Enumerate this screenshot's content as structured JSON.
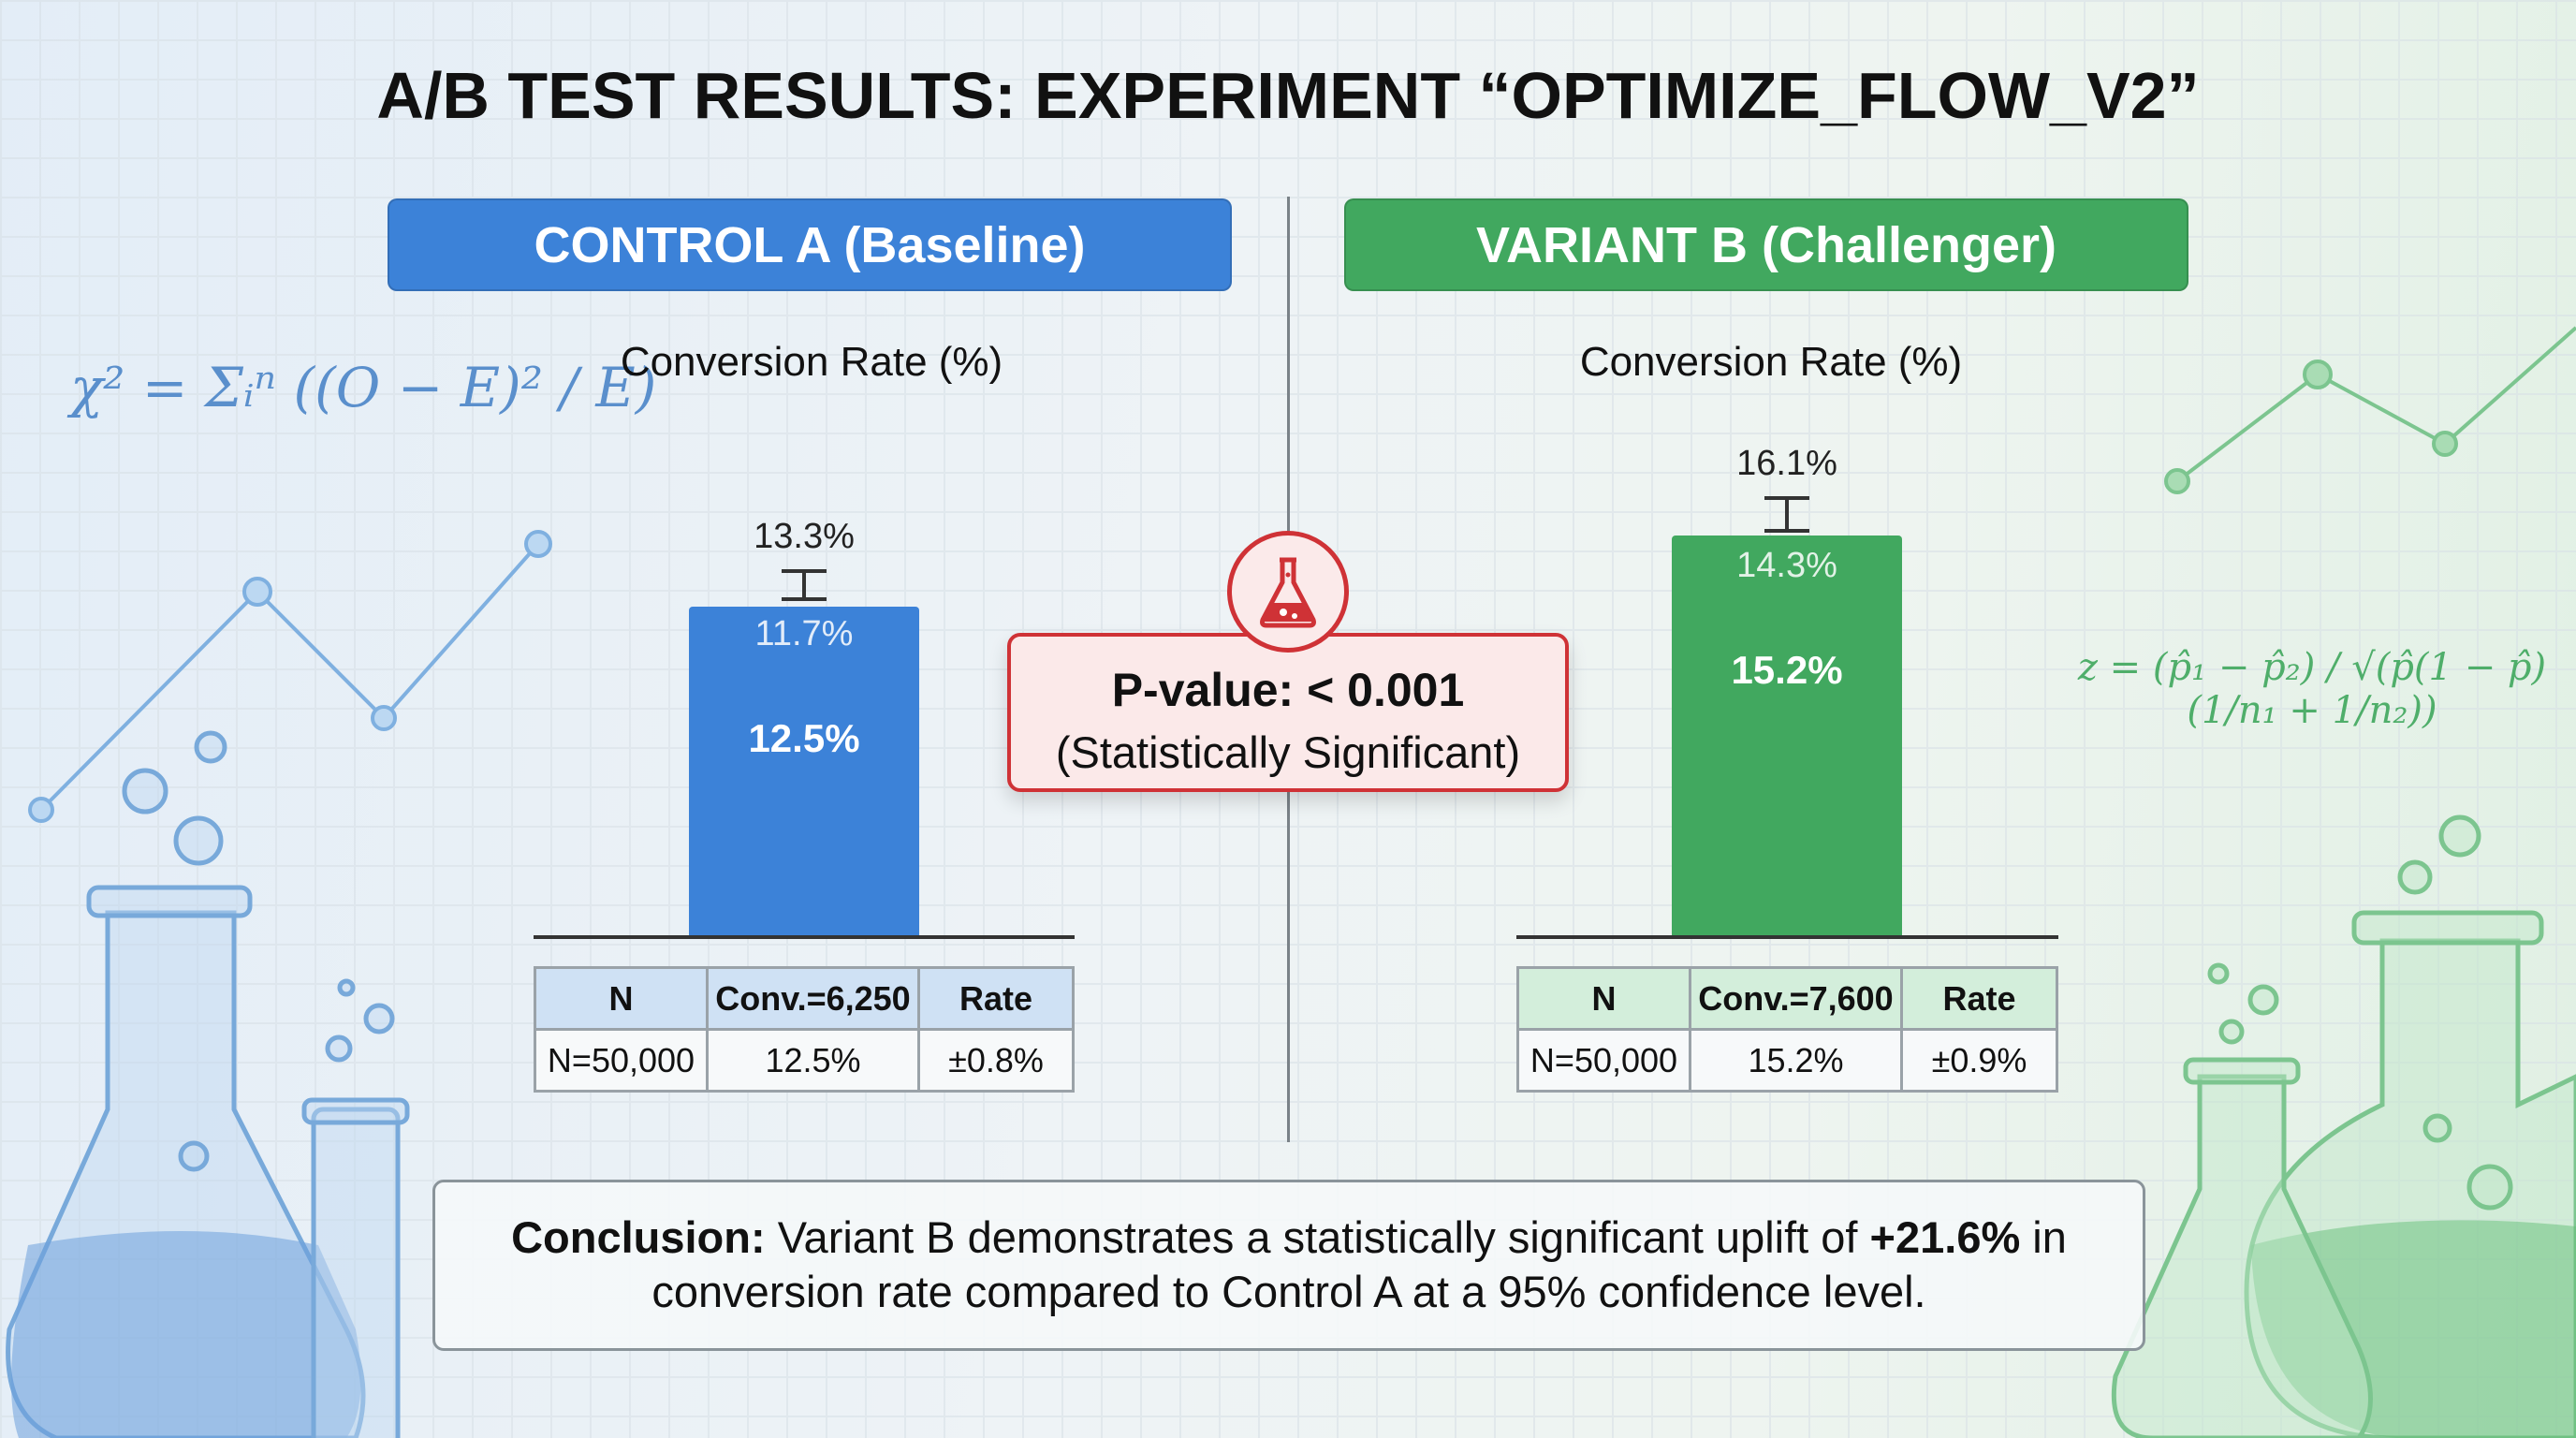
{
  "title": "A/B TEST RESULTS: EXPERIMENT “OPTIMIZE_FLOW_V2”",
  "control": {
    "header": "CONTROL A (Baseline)",
    "chart_label": "Conversion Rate (%)",
    "table": {
      "headers": [
        "N",
        "Conv.=6,250",
        "Rate"
      ],
      "row": [
        "N=50,000",
        "12.5%",
        "±0.8%"
      ]
    }
  },
  "variant": {
    "header": "VARIANT B (Challenger)",
    "chart_label": "Conversion Rate (%)",
    "table": {
      "headers": [
        "N",
        "Conv.=7,600",
        "Rate"
      ],
      "row": [
        "N=50,000",
        "15.2%",
        "±0.9%"
      ]
    }
  },
  "pvalue": {
    "label": "P-value: < 0.001",
    "note": "(Statistically Significant)",
    "icon": "flask-icon"
  },
  "conclusion": {
    "bold": "Conclusion:",
    "text1": " Variant B demonstrates a statistically significant uplift of ",
    "uplift": "+21.6%",
    "text2": " in conversion rate compared to Control A at a 95% confidence level."
  },
  "formulas": {
    "chi_square": "χ² = Σᵢⁿ ((O − E)² / E)",
    "z_test": "z = (p̂₁ − p̂₂) / √(p̂(1 − p̂)(1/n₁ + 1/n₂))"
  },
  "colors": {
    "control": "#3c82d8",
    "variant": "#41a85f",
    "significance": "#cf3236"
  },
  "chart_data": {
    "type": "bar",
    "categories": [
      "Control A",
      "Variant B"
    ],
    "values": [
      12.5,
      15.2
    ],
    "value_labels": [
      "12.5%",
      "15.2%"
    ],
    "ci_low": [
      11.7,
      14.3
    ],
    "ci_high": [
      13.3,
      16.1
    ],
    "ci_low_labels": [
      "11.7%",
      "14.3%"
    ],
    "ci_high_labels": [
      "13.3%",
      "16.1%"
    ],
    "ylabel": "Conversion Rate (%)",
    "ylim": [
      0,
      16.1
    ]
  }
}
